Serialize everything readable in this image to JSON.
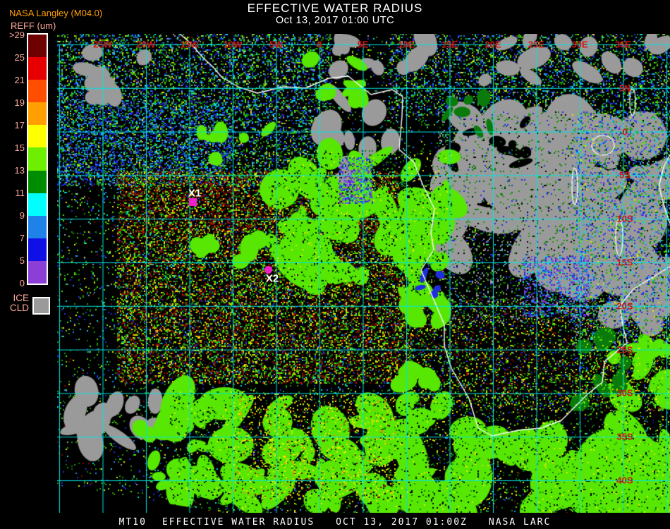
{
  "header": {
    "title": "EFFECTIVE WATER RADIUS",
    "subtitle": "Oct 13, 2017 01:00 UTC"
  },
  "source_label": "NASA Langley (M04.0)",
  "legend": {
    "title": "REFF (um)",
    "tick_labels": [
      ">29",
      "25",
      "21",
      "19",
      "17",
      "15",
      "13",
      "11",
      "9",
      "7",
      "5",
      "0"
    ],
    "segment_colors": [
      "#6E0000",
      "#E60000",
      "#FF4E00",
      "#FFA000",
      "#FFFF00",
      "#6FEF00",
      "#008C00",
      "#00FFFF",
      "#1E82E8",
      "#0F0FE6",
      "#8B3FD6"
    ],
    "ice_cld": {
      "line1": "ICE",
      "line2": "CLD",
      "color": "#9A9A9A"
    }
  },
  "map": {
    "grid_color": "#00E5E5",
    "grid_label_color": "#D21414",
    "coastline_color": "#FFFFFF",
    "longitude_labels": [
      "25W",
      "20W",
      "15W",
      "10W",
      "5W",
      "0",
      "5E",
      "10E",
      "15E",
      "20E",
      "25E",
      "30E",
      "35E"
    ],
    "latitude_labels": [
      "5N",
      "0",
      "5S",
      "10S",
      "15S",
      "20S",
      "25S",
      "30S",
      "35S",
      "40S"
    ],
    "markers": [
      {
        "label": "X1",
        "color": "#F01FC8"
      },
      {
        "label": "X2",
        "color": "#F01FC8"
      }
    ]
  },
  "footer": {
    "satellite": "MT10",
    "product": "EFFECTIVE WATER RADIUS",
    "timestamp": "OCT 13, 2017 01:00Z",
    "agency": "NASA LARC"
  }
}
